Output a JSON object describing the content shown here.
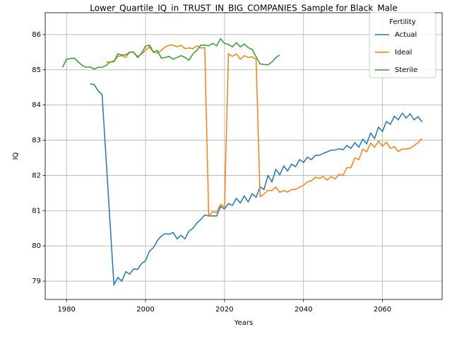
{
  "chart_data": {
    "type": "line",
    "title": "Lower_Quartile_IQ_in_TRUST_IN_BIG_COMPANIES_Sample for Black_Male",
    "x_label": "Years",
    "y_label": "IQ",
    "xlim": [
      1974.6,
      2075.1
    ],
    "ylim": [
      78.48,
      86.62
    ],
    "xticks": [
      1980,
      2000,
      2020,
      2040,
      2060
    ],
    "yticks": [
      79,
      80,
      81,
      82,
      83,
      84,
      85,
      86
    ],
    "grid": true,
    "legend_title": "Fertility",
    "legend_corner": "upper right",
    "series": [
      {
        "name": "Actual",
        "color": "#1f77b4",
        "x": [
          1986,
          1987,
          1988,
          1989,
          1990,
          1991,
          1992,
          1993,
          1994,
          1995,
          1996,
          1997,
          1998,
          1999,
          2000,
          2001,
          2002,
          2003,
          2004,
          2005,
          2006,
          2007,
          2008,
          2009,
          2010,
          2011,
          2012,
          2013,
          2014,
          2015,
          2016,
          2017,
          2018,
          2019,
          2020,
          2021,
          2022,
          2023,
          2024,
          2025,
          2026,
          2027,
          2028,
          2029,
          2030,
          2031,
          2032,
          2033,
          2034,
          2035,
          2036,
          2037,
          2038,
          2039,
          2040,
          2041,
          2042,
          2043,
          2044,
          2045,
          2046,
          2047,
          2048,
          2049,
          2050,
          2051,
          2052,
          2053,
          2054,
          2055,
          2056,
          2057,
          2058,
          2059,
          2060,
          2061,
          2062,
          2063,
          2064,
          2065,
          2066,
          2067,
          2068,
          2069,
          2070
        ],
        "values": [
          84.6,
          84.58,
          84.4,
          84.3,
          82.5,
          80.7,
          78.9,
          79.1,
          79.0,
          79.27,
          79.2,
          79.35,
          79.33,
          79.5,
          79.58,
          79.85,
          79.95,
          80.15,
          80.28,
          80.35,
          80.33,
          80.38,
          80.2,
          80.3,
          80.2,
          80.42,
          80.5,
          80.65,
          80.75,
          80.88,
          80.85,
          80.85,
          80.85,
          81.12,
          81.05,
          81.2,
          81.15,
          81.35,
          81.22,
          81.42,
          81.25,
          81.48,
          81.38,
          81.68,
          81.6,
          82.0,
          81.82,
          82.17,
          82.02,
          82.27,
          82.13,
          82.32,
          82.25,
          82.45,
          82.37,
          82.52,
          82.45,
          82.57,
          82.57,
          82.63,
          82.67,
          82.72,
          82.72,
          82.76,
          82.73,
          82.85,
          82.77,
          82.93,
          82.8,
          83.03,
          82.9,
          83.2,
          83.05,
          83.37,
          83.25,
          83.53,
          83.45,
          83.68,
          83.58,
          83.77,
          83.63,
          83.75,
          83.58,
          83.67,
          83.52
        ]
      },
      {
        "name": "Ideal",
        "color": "#ff7f0e",
        "x": [
          1990,
          1991,
          1992,
          1993,
          1994,
          1995,
          1996,
          1997,
          1998,
          1999,
          2000,
          2001,
          2002,
          2003,
          2004,
          2005,
          2006,
          2007,
          2008,
          2009,
          2010,
          2011,
          2012,
          2013,
          2014,
          2015,
          2016,
          2017,
          2018,
          2019,
          2020,
          2021,
          2022,
          2023,
          2024,
          2025,
          2026,
          2027,
          2028,
          2029,
          2030,
          2031,
          2032,
          2033,
          2034,
          2035,
          2036,
          2037,
          2038,
          2039,
          2040,
          2041,
          2042,
          2043,
          2044,
          2045,
          2046,
          2047,
          2048,
          2049,
          2050,
          2051,
          2052,
          2053,
          2054,
          2055,
          2056,
          2057,
          2058,
          2059,
          2060,
          2061,
          2062,
          2063,
          2064,
          2065,
          2066,
          2067,
          2068,
          2069,
          2070
        ],
        "values": [
          85.22,
          85.22,
          85.25,
          85.38,
          85.4,
          85.35,
          85.5,
          85.5,
          85.38,
          85.45,
          85.55,
          85.65,
          85.5,
          85.47,
          85.55,
          85.65,
          85.7,
          85.7,
          85.65,
          85.7,
          85.6,
          85.62,
          85.6,
          85.68,
          85.62,
          85.63,
          80.85,
          80.97,
          80.95,
          81.18,
          81.1,
          85.45,
          85.38,
          85.45,
          85.3,
          85.4,
          85.35,
          85.37,
          85.3,
          81.4,
          81.47,
          81.58,
          81.57,
          81.67,
          81.52,
          81.57,
          81.53,
          81.6,
          81.6,
          81.67,
          81.72,
          81.82,
          81.85,
          81.95,
          81.92,
          81.97,
          81.87,
          81.97,
          81.9,
          82.03,
          82.0,
          82.22,
          82.22,
          82.5,
          82.45,
          82.75,
          82.67,
          82.92,
          82.8,
          82.98,
          82.83,
          82.95,
          82.77,
          82.82,
          82.68,
          82.75,
          82.75,
          82.77,
          82.85,
          82.93,
          83.05
        ]
      },
      {
        "name": "Sterile",
        "color": "#2ca02c",
        "x": [
          1979,
          1980,
          1981,
          1982,
          1983,
          1984,
          1985,
          1986,
          1987,
          1988,
          1989,
          1990,
          1991,
          1992,
          1993,
          1994,
          1995,
          1996,
          1997,
          1998,
          1999,
          2000,
          2001,
          2002,
          2003,
          2004,
          2005,
          2006,
          2007,
          2008,
          2009,
          2010,
          2011,
          2012,
          2013,
          2014,
          2015,
          2016,
          2017,
          2018,
          2019,
          2020,
          2021,
          2022,
          2023,
          2024,
          2025,
          2026,
          2027,
          2028,
          2029,
          2030,
          2031,
          2032,
          2033,
          2034
        ],
        "values": [
          85.07,
          85.3,
          85.32,
          85.33,
          85.22,
          85.12,
          85.07,
          85.08,
          85.02,
          85.07,
          85.07,
          85.12,
          85.22,
          85.23,
          85.45,
          85.42,
          85.42,
          85.5,
          85.5,
          85.35,
          85.47,
          85.67,
          85.7,
          85.5,
          85.55,
          85.33,
          85.35,
          85.38,
          85.3,
          85.35,
          85.4,
          85.35,
          85.27,
          85.45,
          85.55,
          85.7,
          85.7,
          85.68,
          85.75,
          85.68,
          85.88,
          85.75,
          85.72,
          85.65,
          85.77,
          85.65,
          85.73,
          85.63,
          85.58,
          85.37,
          85.17,
          85.15,
          85.14,
          85.22,
          85.35,
          85.42
        ]
      }
    ]
  }
}
